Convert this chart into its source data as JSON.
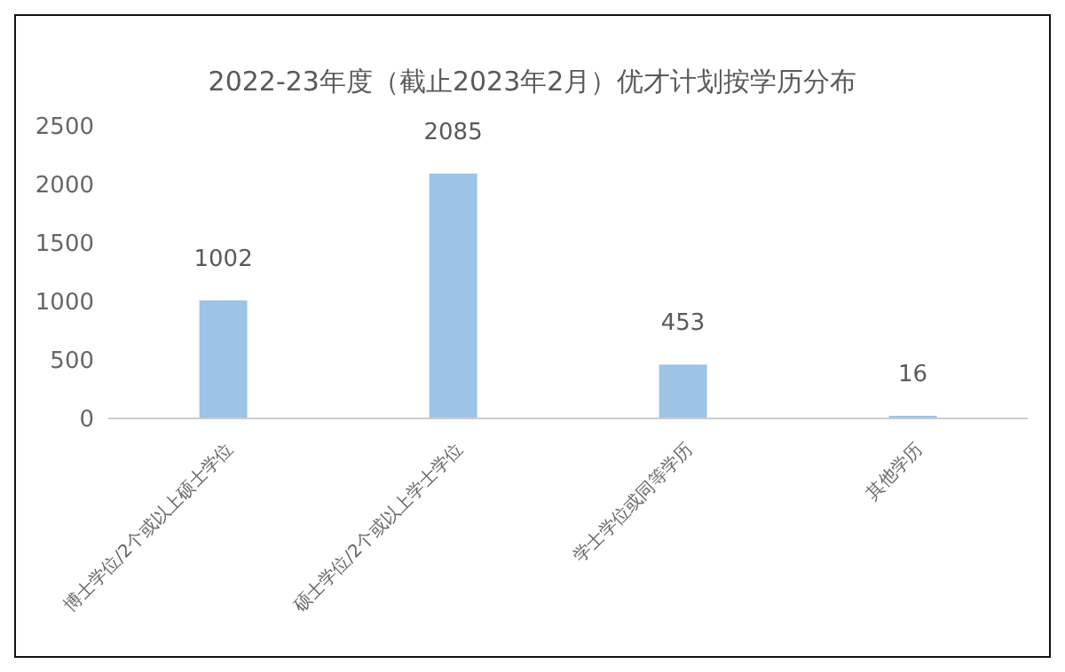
{
  "chart_data": {
    "type": "bar",
    "title": "2022-23年度（截止2023年2月）优才计划按学历分布",
    "categories": [
      "博士学位/2个或以上硕士学位",
      "硕士学位/2个或以上学士学位",
      "学士学位或同等学历",
      "其他学历"
    ],
    "values": [
      1002,
      2085,
      453,
      16
    ],
    "color": "#9dc3e6",
    "ylim": [
      0,
      2500
    ],
    "yticks": [
      0,
      500,
      1000,
      1500,
      2000,
      2500
    ],
    "grid": false,
    "data_labels": true
  }
}
